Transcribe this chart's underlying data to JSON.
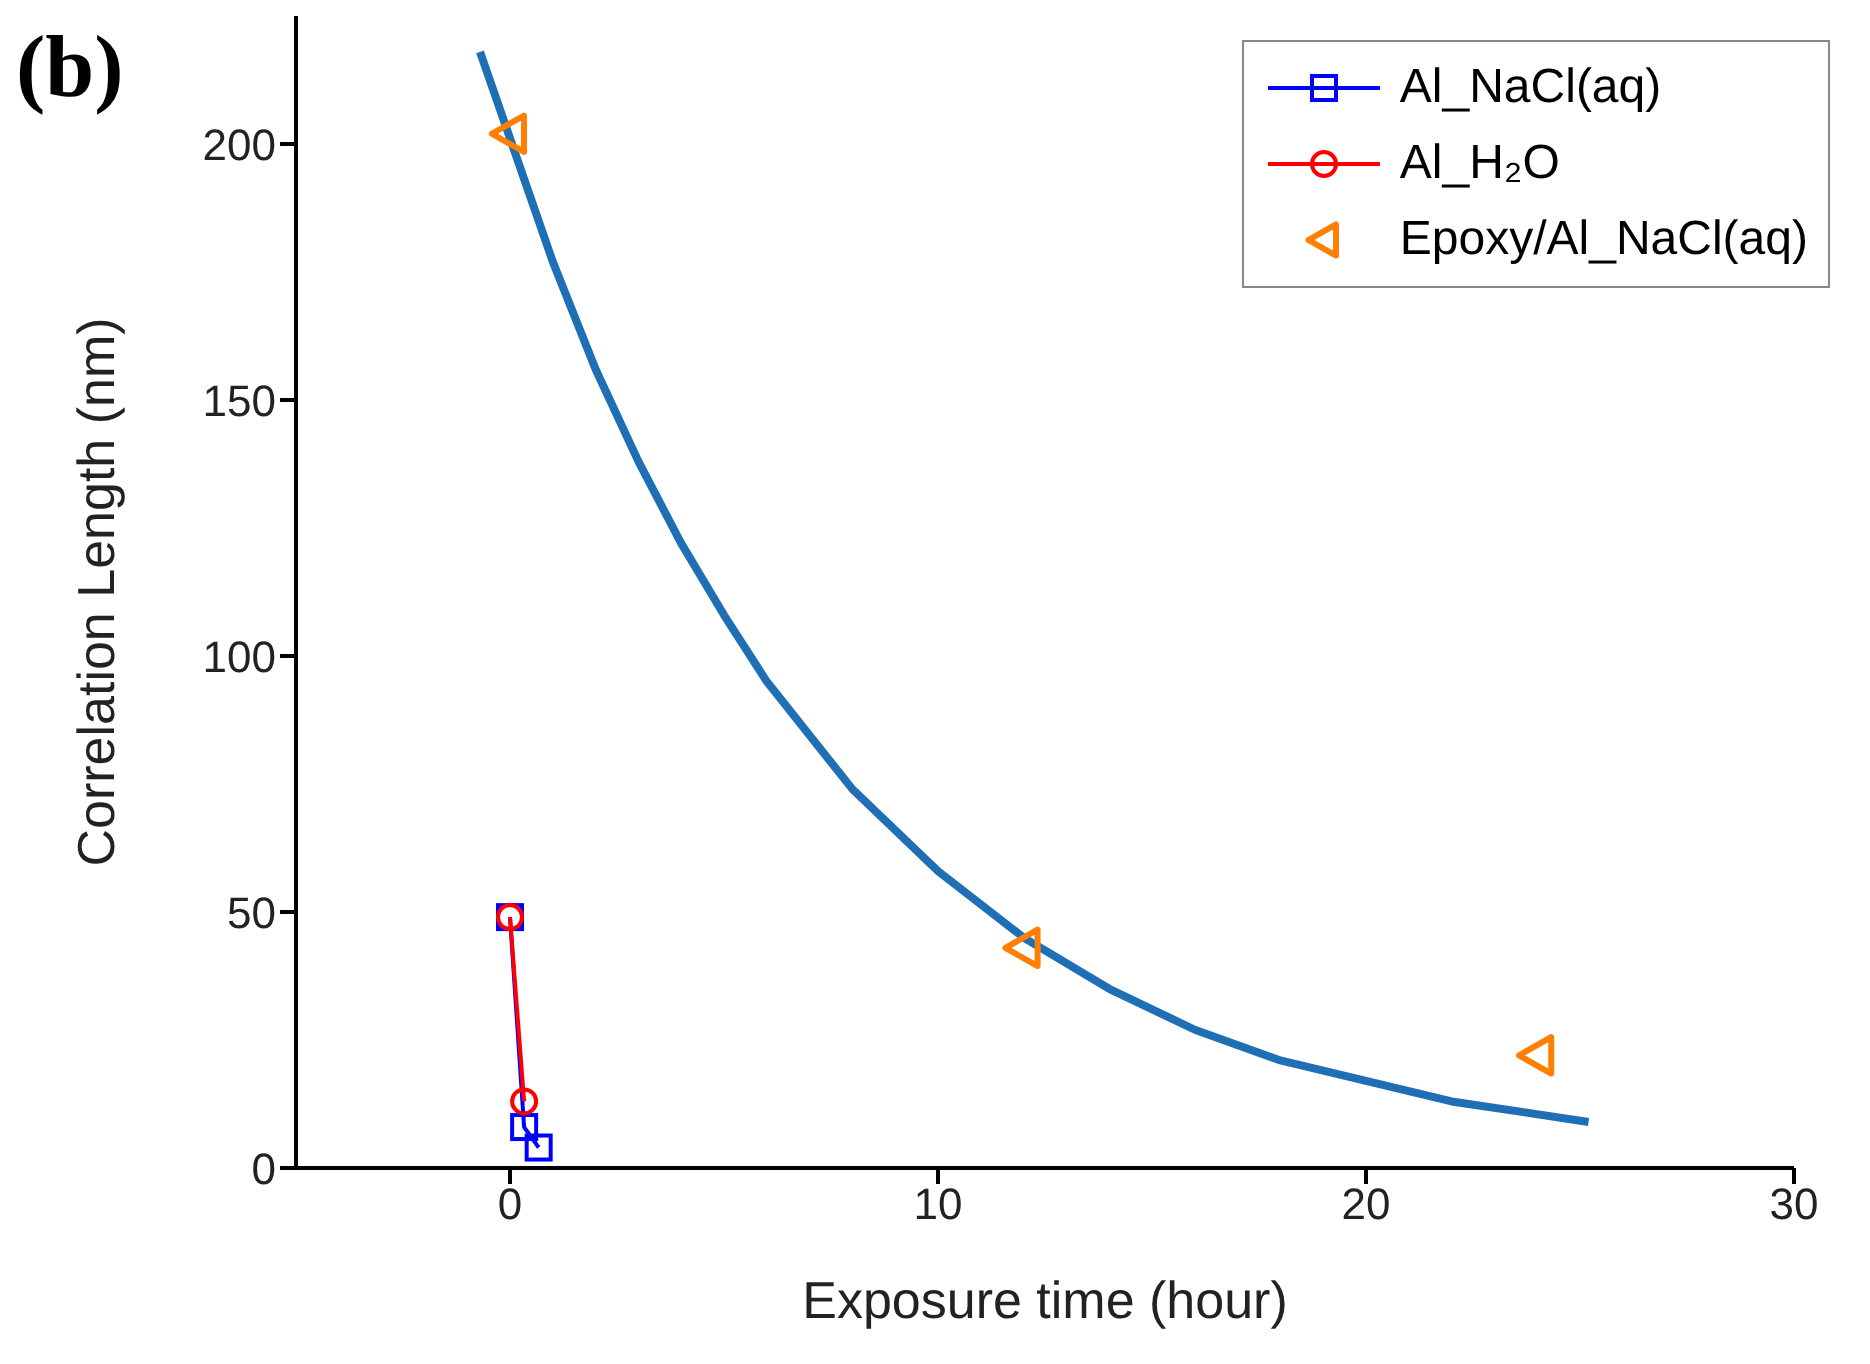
{
  "chart_data": {
    "type": "line",
    "title": "(b)",
    "xlabel": "Exposure time (hour)",
    "ylabel": "Correlation Length (nm)",
    "xlim": [
      -5,
      30
    ],
    "xticks": [
      0,
      10,
      20,
      30
    ],
    "ylim": [
      0,
      225
    ],
    "yticks": [
      0,
      50,
      100,
      150,
      200
    ],
    "grid": false,
    "legend": "top right",
    "line_style": "solid",
    "series": [
      {
        "name": "Al_NaCl(aq)",
        "marker": "square",
        "color": "#0000ff",
        "x": [
          0,
          0.33,
          0.67
        ],
        "values": [
          49,
          8,
          4
        ]
      },
      {
        "name": "Al_H₂O",
        "marker": "circle",
        "color": "#ff0000",
        "x": [
          0,
          0.33
        ],
        "values": [
          49,
          13
        ]
      },
      {
        "name": "Epoxy/Al_NaCl(aq)",
        "type": "scatter",
        "marker": "triangle",
        "color": "#ff8000",
        "x": [
          0,
          12,
          24
        ],
        "values": [
          202,
          43,
          22
        ]
      },
      {
        "marker": "none",
        "color": "#1f6fb4",
        "x": [
          -0.7,
          1,
          2,
          3,
          4,
          5,
          6,
          8,
          10,
          12,
          14,
          16,
          18,
          20,
          22,
          25.2
        ],
        "values": [
          218,
          177,
          156,
          138,
          122,
          108,
          95,
          74,
          58,
          45,
          35,
          27,
          21,
          17,
          13,
          9
        ]
      }
    ]
  }
}
